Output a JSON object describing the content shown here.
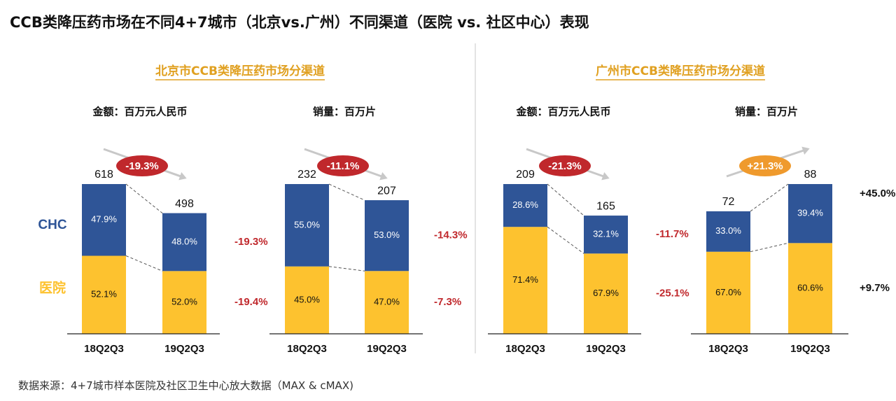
{
  "page": {
    "title": "CCB类降压药市场在不同4+7城市（北京vs.广州）不同渠道（医院 vs. 社区中心）表现",
    "source": "数据来源：4+7城市样本医院及社区卫生中心放大数据（MAX & cMAX)"
  },
  "panels": [
    {
      "title": "北京市CCB类降压药市场分渠道",
      "label_chc": "CHC",
      "label_hospital": "医院"
    },
    {
      "title": "广州市CCB类降压药市场分渠道"
    }
  ],
  "colors": {
    "chc": "#2f5597",
    "hospital": "#fdc22f",
    "panel_title": "#e0a020",
    "growth_negative": "#c0282c",
    "growth_positive": "#ef9a2d",
    "growth_text_negative": "#c0282c",
    "growth_text_positive": "#111111"
  },
  "chart_data": [
    {
      "type": "bar",
      "stacked": true,
      "panel": "北京市",
      "subtitle": "金额：百万元人民币",
      "categories": [
        "18Q2Q3",
        "19Q2Q3"
      ],
      "totals": [
        618,
        498
      ],
      "series": [
        {
          "name": "CHC",
          "share_labels": [
            "47.9%",
            "48.0%"
          ],
          "growth": "-19.3%"
        },
        {
          "name": "医院",
          "share_labels": [
            "52.1%",
            "52.0%"
          ],
          "growth": "-19.4%"
        }
      ],
      "total_growth": "-19.3%"
    },
    {
      "type": "bar",
      "stacked": true,
      "panel": "北京市",
      "subtitle": "销量：百万片",
      "categories": [
        "18Q2Q3",
        "19Q2Q3"
      ],
      "totals": [
        232,
        207
      ],
      "series": [
        {
          "name": "CHC",
          "share_labels": [
            "55.0%",
            "53.0%"
          ],
          "growth": "-14.3%"
        },
        {
          "name": "医院",
          "share_labels": [
            "45.0%",
            "47.0%"
          ],
          "growth": "-7.3%"
        }
      ],
      "total_growth": "-11.1%"
    },
    {
      "type": "bar",
      "stacked": true,
      "panel": "广州市",
      "subtitle": "金额：百万元人民币",
      "categories": [
        "18Q2Q3",
        "19Q2Q3"
      ],
      "totals": [
        209,
        165
      ],
      "series": [
        {
          "name": "CHC",
          "share_labels": [
            "28.6%",
            "32.1%"
          ],
          "growth": "-11.7%"
        },
        {
          "name": "医院",
          "share_labels": [
            "71.4%",
            "67.9%"
          ],
          "growth": "-25.1%"
        }
      ],
      "total_growth": "-21.3%"
    },
    {
      "type": "bar",
      "stacked": true,
      "panel": "广州市",
      "subtitle": "销量：百万片",
      "categories": [
        "18Q2Q3",
        "19Q2Q3"
      ],
      "totals": [
        72,
        88
      ],
      "series": [
        {
          "name": "CHC",
          "share_labels": [
            "33.0%",
            "39.4%"
          ],
          "growth": "+45.0%"
        },
        {
          "name": "医院",
          "share_labels": [
            "67.0%",
            "60.6%"
          ],
          "growth": "+9.7%"
        }
      ],
      "total_growth": "+21.3%"
    }
  ]
}
